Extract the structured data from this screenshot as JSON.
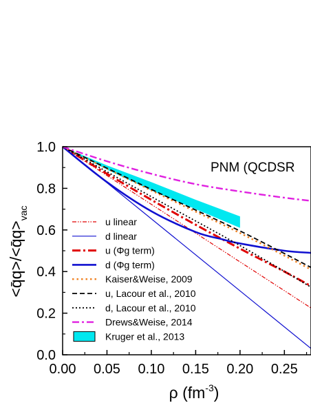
{
  "chart_data": {
    "type": "line",
    "annotation": "PNM (QCDSR",
    "xlabel": {
      "main": "ρ (fm",
      "sup": "-3",
      "close": ")"
    },
    "ylabel": {
      "main": "<q̄q>/<q̄q>",
      "sub": "vac"
    },
    "xlim": [
      0.0,
      0.28
    ],
    "ylim": [
      0.0,
      1.0
    ],
    "xticks": [
      "0.00",
      "0.05",
      "0.10",
      "0.15",
      "0.20",
      "0.25"
    ],
    "yticks": [
      "0.0",
      "0.2",
      "0.4",
      "0.6",
      "0.8",
      "1.0"
    ],
    "grid": false,
    "legend_position": "left-bottom",
    "series": [
      {
        "name": "u linear",
        "color": "#e00000",
        "style": "dashdotdot-thin",
        "x": [
          0.0,
          0.28
        ],
        "y": [
          1.0,
          0.225
        ]
      },
      {
        "name": "d linear",
        "color": "#1010d0",
        "style": "solid-thin",
        "x": [
          0.0,
          0.28
        ],
        "y": [
          1.0,
          0.03
        ]
      },
      {
        "name": "u (Φg term)",
        "color": "#e00000",
        "style": "dashdot-thick",
        "x": [
          0.0,
          0.05,
          0.1,
          0.15,
          0.2,
          0.25,
          0.28
        ],
        "y": [
          1.0,
          0.87,
          0.745,
          0.625,
          0.51,
          0.4,
          0.33
        ]
      },
      {
        "name": "d (Φg term)",
        "color": "#1010d0",
        "style": "solid-thick",
        "x": [
          0.0,
          0.05,
          0.1,
          0.15,
          0.18,
          0.2,
          0.25,
          0.28
        ],
        "y": [
          1.0,
          0.83,
          0.69,
          0.59,
          0.555,
          0.535,
          0.5,
          0.49
        ]
      },
      {
        "name": "Kaiser&Weise, 2009",
        "color": "#f08020",
        "style": "dot-thick",
        "x": [
          0.0,
          0.1,
          0.2,
          0.28
        ],
        "y": [
          1.0,
          0.79,
          0.585,
          0.41
        ]
      },
      {
        "name": "u, Lacour et al., 2010",
        "color": "#000000",
        "style": "dash",
        "x": [
          0.0,
          0.1,
          0.2,
          0.28
        ],
        "y": [
          1.0,
          0.795,
          0.595,
          0.42
        ]
      },
      {
        "name": "d, Lacour et al., 2010",
        "color": "#000000",
        "style": "dot",
        "x": [
          0.0,
          0.1,
          0.2,
          0.28
        ],
        "y": [
          1.0,
          0.76,
          0.525,
          0.325
        ]
      },
      {
        "name": "Drews&Weise, 2014",
        "color": "#e020e0",
        "style": "dashdot",
        "x": [
          0.0,
          0.05,
          0.1,
          0.15,
          0.2,
          0.25,
          0.28
        ],
        "y": [
          1.0,
          0.93,
          0.87,
          0.82,
          0.785,
          0.755,
          0.74
        ]
      }
    ],
    "band": {
      "name": "Kruger et al., 2013",
      "color": "#00e8f0",
      "x": [
        0.0,
        0.05,
        0.1,
        0.15,
        0.2
      ],
      "upper": [
        1.0,
        0.91,
        0.83,
        0.745,
        0.665
      ],
      "lower": [
        1.0,
        0.89,
        0.79,
        0.7,
        0.61
      ]
    }
  }
}
